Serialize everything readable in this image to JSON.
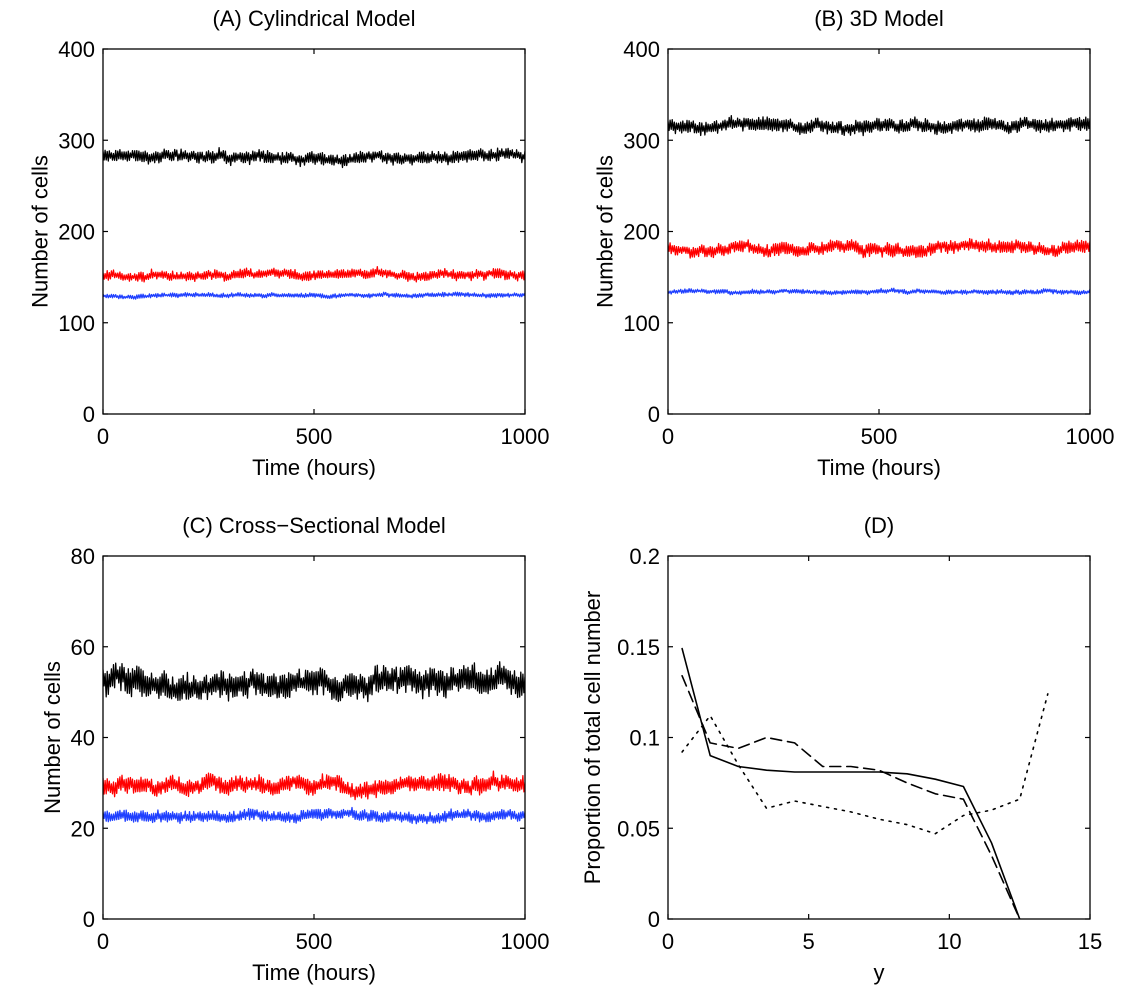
{
  "chart_data": [
    {
      "type": "line",
      "title": "(A) Cylindrical Model",
      "xlabel": "Time (hours)",
      "ylabel": "Number of cells",
      "xlim": [
        0,
        1000
      ],
      "ylim": [
        0,
        400
      ],
      "xticks": [
        "0",
        "500",
        "1000"
      ],
      "yticks": [
        "0",
        "100",
        "200",
        "300",
        "400"
      ],
      "grid": false,
      "series": [
        {
          "color": "#000000",
          "style": "solid",
          "mean": 283,
          "amplitude": 9,
          "points": 400,
          "seed": 11
        },
        {
          "color": "#ff0000",
          "style": "solid",
          "mean": 153,
          "amplitude": 7,
          "points": 400,
          "seed": 12
        },
        {
          "color": "#2040ff",
          "style": "solid",
          "mean": 130,
          "amplitude": 3,
          "points": 400,
          "seed": 13
        }
      ]
    },
    {
      "type": "line",
      "title": "(B) 3D Model",
      "xlabel": "Time (hours)",
      "ylabel": "Number of cells",
      "xlim": [
        0,
        1000
      ],
      "ylim": [
        0,
        400
      ],
      "xticks": [
        "0",
        "500",
        "1000"
      ],
      "yticks": [
        "0",
        "100",
        "200",
        "300",
        "400"
      ],
      "grid": false,
      "series": [
        {
          "color": "#000000",
          "style": "solid",
          "mean": 316,
          "amplitude": 10,
          "points": 400,
          "seed": 21
        },
        {
          "color": "#ff0000",
          "style": "solid",
          "mean": 182,
          "amplitude": 9,
          "points": 400,
          "seed": 22
        },
        {
          "color": "#2040ff",
          "style": "solid",
          "mean": 134,
          "amplitude": 3,
          "points": 400,
          "seed": 23
        }
      ]
    },
    {
      "type": "line",
      "title": "(C) Cross−Sectional Model",
      "xlabel": "Time (hours)",
      "ylabel": "Number of cells",
      "xlim": [
        0,
        1000
      ],
      "ylim": [
        0,
        80
      ],
      "xticks": [
        "0",
        "500",
        "1000"
      ],
      "yticks": [
        "0",
        "20",
        "40",
        "60",
        "80"
      ],
      "grid": false,
      "series": [
        {
          "color": "#000000",
          "style": "solid",
          "mean": 52,
          "amplitude": 4,
          "points": 400,
          "seed": 31
        },
        {
          "color": "#ff0000",
          "style": "solid",
          "mean": 29.5,
          "amplitude": 2.5,
          "points": 400,
          "seed": 32
        },
        {
          "color": "#2040ff",
          "style": "solid",
          "mean": 22.5,
          "amplitude": 1.6,
          "points": 400,
          "seed": 33
        }
      ]
    },
    {
      "type": "line",
      "title": "(D)",
      "xlabel": "y",
      "ylabel": "Proportion of total cell number",
      "xlim": [
        0,
        15
      ],
      "ylim": [
        0,
        0.2
      ],
      "xticks": [
        "0",
        "5",
        "10",
        "15"
      ],
      "yticks": [
        "0",
        "0.05",
        "0.1",
        "0.15",
        "0.2"
      ],
      "grid": false,
      "series": [
        {
          "color": "#000000",
          "style": "solid",
          "x": [
            0.5,
            1.5,
            2.5,
            3.5,
            4.5,
            5.5,
            6.5,
            7.5,
            8.5,
            9.5,
            10.5,
            11.5,
            12.5
          ],
          "y": [
            0.149,
            0.09,
            0.084,
            0.082,
            0.081,
            0.081,
            0.081,
            0.081,
            0.08,
            0.077,
            0.073,
            0.042,
            0.0
          ]
        },
        {
          "color": "#000000",
          "style": "dashed",
          "x": [
            0.5,
            1.5,
            2.5,
            3.5,
            4.5,
            5.5,
            6.5,
            7.5,
            8.5,
            9.5,
            10.5,
            11.5,
            12.5
          ],
          "y": [
            0.134,
            0.097,
            0.094,
            0.1,
            0.097,
            0.084,
            0.084,
            0.082,
            0.075,
            0.069,
            0.066,
            0.035,
            0.0
          ]
        },
        {
          "color": "#000000",
          "style": "dotted",
          "x": [
            0.5,
            1.5,
            2.5,
            3.5,
            4.5,
            5.5,
            6.5,
            7.5,
            8.5,
            9.5,
            10.5,
            11.5,
            12.5,
            13.5
          ],
          "y": [
            0.092,
            0.112,
            0.085,
            0.061,
            0.065,
            0.062,
            0.059,
            0.055,
            0.052,
            0.047,
            0.057,
            0.06,
            0.066,
            0.124
          ]
        }
      ]
    }
  ]
}
